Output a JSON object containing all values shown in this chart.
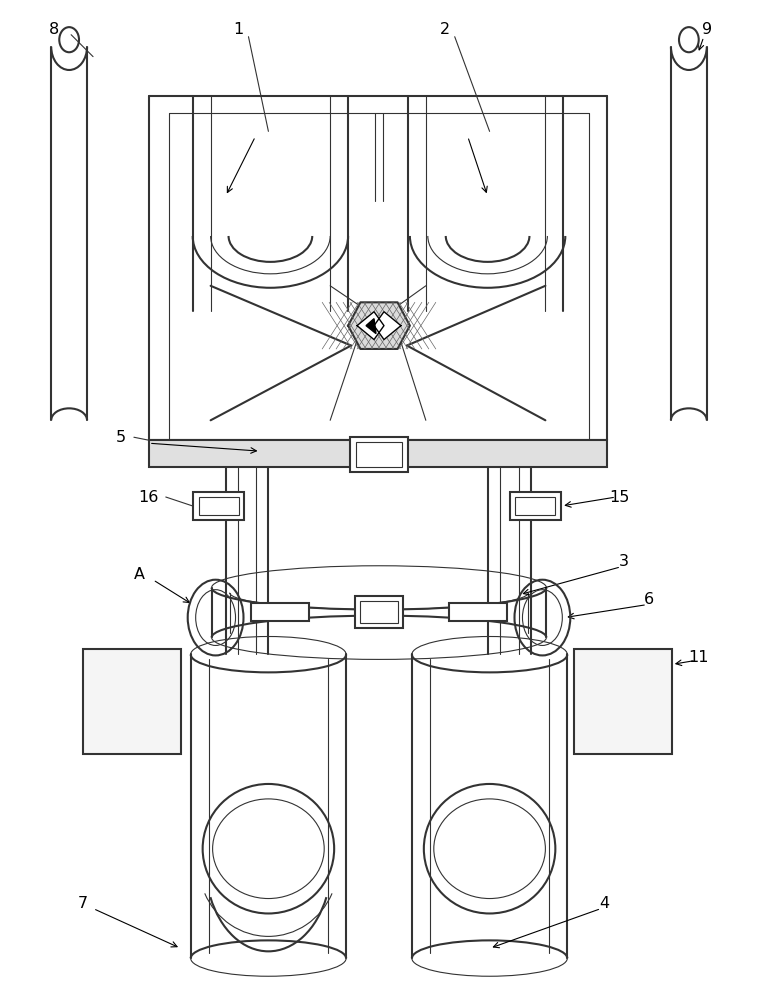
{
  "bg_color": "#ffffff",
  "line_color": "#333333",
  "line_width": 1.5,
  "thin_line": 0.8,
  "fig_width": 7.58,
  "fig_height": 10.0,
  "dpi": 100
}
